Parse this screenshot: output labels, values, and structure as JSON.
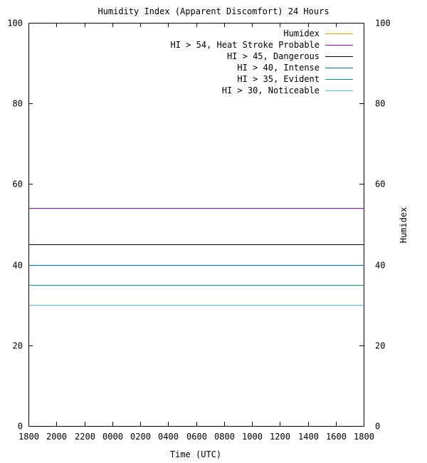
{
  "chart_data": {
    "type": "line",
    "title": "Humidity Index (Apparent Discomfort) 24 Hours",
    "xlabel": "Time (UTC)",
    "ylabel": "Humidex",
    "x_ticks": [
      "1800",
      "2000",
      "2200",
      "0000",
      "0200",
      "0400",
      "0600",
      "0800",
      "1000",
      "1200",
      "1400",
      "1600",
      "1800"
    ],
    "y_ticks": [
      0,
      20,
      40,
      60,
      80,
      100
    ],
    "ylim": [
      0,
      100
    ],
    "grid": false,
    "legend_position": "top-right",
    "series": [
      {
        "name": "Humidex",
        "color": "#e69f00",
        "values": []
      },
      {
        "name": "HI > 54, Heat Stroke Probable",
        "color": "#9400d3",
        "value": 54
      },
      {
        "name": "HI > 45, Dangerous",
        "color": "#000000",
        "value": 45
      },
      {
        "name": "HI > 40, Intense",
        "color": "#0072b2",
        "value": 40
      },
      {
        "name": "HI > 35, Evident",
        "color": "#009e73",
        "value": 35
      },
      {
        "name": "HI > 30, Noticeable",
        "color": "#56b4e9",
        "value": 30
      }
    ]
  }
}
